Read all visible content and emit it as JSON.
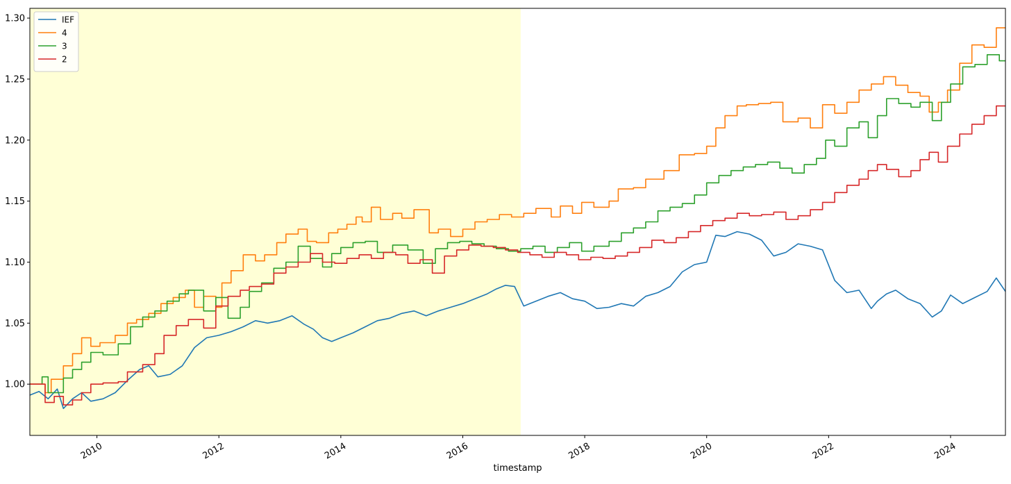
{
  "chart_data": {
    "type": "line",
    "xlabel": "timestamp",
    "ylabel": "",
    "title": "",
    "xlim": [
      2008.9,
      2024.9
    ],
    "ylim": [
      0.958,
      1.308
    ],
    "x_ticks": [
      2010,
      2012,
      2014,
      2016,
      2018,
      2020,
      2022,
      2024
    ],
    "x_tick_labels": [
      "2010",
      "2012",
      "2014",
      "2016",
      "2018",
      "2020",
      "2022",
      "2024"
    ],
    "y_ticks": [
      1.0,
      1.05,
      1.1,
      1.15,
      1.2,
      1.25,
      1.3
    ],
    "y_tick_labels": [
      "1.00",
      "1.05",
      "1.10",
      "1.15",
      "1.20",
      "1.25",
      "1.30"
    ],
    "grid": false,
    "legend_position": "top-left",
    "shaded_region": {
      "x_start": 2008.9,
      "x_end": 2016.95,
      "color": "#ffffd6"
    },
    "series": [
      {
        "name": "IEF",
        "color": "#1f77b4",
        "step": false,
        "x": [
          2008.9,
          2009.05,
          2009.2,
          2009.35,
          2009.45,
          2009.6,
          2009.75,
          2009.9,
          2010.1,
          2010.3,
          2010.5,
          2010.7,
          2010.85,
          2011.0,
          2011.2,
          2011.4,
          2011.6,
          2011.8,
          2012.0,
          2012.2,
          2012.4,
          2012.6,
          2012.8,
          2013.0,
          2013.2,
          2013.4,
          2013.55,
          2013.7,
          2013.85,
          2014.0,
          2014.2,
          2014.4,
          2014.6,
          2014.8,
          2015.0,
          2015.2,
          2015.4,
          2015.6,
          2015.8,
          2016.0,
          2016.2,
          2016.4,
          2016.55,
          2016.7,
          2016.85,
          2017.0,
          2017.2,
          2017.4,
          2017.6,
          2017.8,
          2018.0,
          2018.2,
          2018.4,
          2018.6,
          2018.8,
          2019.0,
          2019.2,
          2019.4,
          2019.6,
          2019.8,
          2020.0,
          2020.15,
          2020.3,
          2020.5,
          2020.7,
          2020.9,
          2021.1,
          2021.3,
          2021.5,
          2021.7,
          2021.9,
          2022.1,
          2022.3,
          2022.5,
          2022.7,
          2022.8,
          2022.95,
          2023.1,
          2023.3,
          2023.5,
          2023.7,
          2023.85,
          2024.0,
          2024.2,
          2024.4,
          2024.6,
          2024.75,
          2024.9
        ],
        "values": [
          0.991,
          0.994,
          0.988,
          0.996,
          0.98,
          0.988,
          0.993,
          0.986,
          0.988,
          0.993,
          1.003,
          1.012,
          1.015,
          1.006,
          1.008,
          1.015,
          1.03,
          1.038,
          1.04,
          1.043,
          1.047,
          1.052,
          1.05,
          1.052,
          1.056,
          1.049,
          1.045,
          1.038,
          1.035,
          1.038,
          1.042,
          1.047,
          1.052,
          1.054,
          1.058,
          1.06,
          1.056,
          1.06,
          1.063,
          1.066,
          1.07,
          1.074,
          1.078,
          1.081,
          1.08,
          1.064,
          1.068,
          1.072,
          1.075,
          1.07,
          1.068,
          1.062,
          1.063,
          1.066,
          1.064,
          1.072,
          1.075,
          1.08,
          1.092,
          1.098,
          1.1,
          1.122,
          1.121,
          1.125,
          1.123,
          1.118,
          1.105,
          1.108,
          1.115,
          1.113,
          1.11,
          1.085,
          1.075,
          1.077,
          1.062,
          1.068,
          1.074,
          1.077,
          1.07,
          1.066,
          1.055,
          1.06,
          1.073,
          1.066,
          1.071,
          1.076,
          1.087,
          1.076
        ]
      },
      {
        "name": "4",
        "color": "#ff7f0e",
        "step": true,
        "x": [
          2008.9,
          2009.15,
          2009.25,
          2009.45,
          2009.6,
          2009.75,
          2009.9,
          2010.05,
          2010.3,
          2010.5,
          2010.65,
          2010.85,
          2011.05,
          2011.25,
          2011.45,
          2011.6,
          2011.75,
          2011.95,
          2012.05,
          2012.2,
          2012.4,
          2012.6,
          2012.75,
          2012.95,
          2013.1,
          2013.3,
          2013.45,
          2013.6,
          2013.8,
          2013.95,
          2014.1,
          2014.25,
          2014.35,
          2014.5,
          2014.65,
          2014.85,
          2015.0,
          2015.2,
          2015.45,
          2015.6,
          2015.8,
          2016.0,
          2016.2,
          2016.4,
          2016.6,
          2016.8,
          2017.0,
          2017.2,
          2017.45,
          2017.6,
          2017.8,
          2017.95,
          2018.15,
          2018.4,
          2018.55,
          2018.8,
          2019.0,
          2019.3,
          2019.55,
          2019.8,
          2020.0,
          2020.15,
          2020.3,
          2020.5,
          2020.65,
          2020.85,
          2021.05,
          2021.25,
          2021.5,
          2021.7,
          2021.9,
          2022.1,
          2022.3,
          2022.5,
          2022.7,
          2022.9,
          2023.1,
          2023.3,
          2023.5,
          2023.65,
          2023.8,
          2023.95,
          2024.15,
          2024.35,
          2024.55,
          2024.75
        ],
        "values": [
          1.0,
          0.993,
          1.004,
          1.015,
          1.025,
          1.038,
          1.031,
          1.034,
          1.04,
          1.05,
          1.053,
          1.058,
          1.066,
          1.071,
          1.077,
          1.063,
          1.072,
          1.063,
          1.083,
          1.093,
          1.106,
          1.101,
          1.106,
          1.116,
          1.123,
          1.127,
          1.117,
          1.116,
          1.124,
          1.127,
          1.131,
          1.137,
          1.133,
          1.145,
          1.135,
          1.14,
          1.136,
          1.143,
          1.124,
          1.127,
          1.121,
          1.127,
          1.133,
          1.135,
          1.139,
          1.137,
          1.14,
          1.144,
          1.137,
          1.146,
          1.14,
          1.149,
          1.145,
          1.15,
          1.16,
          1.161,
          1.168,
          1.175,
          1.188,
          1.189,
          1.195,
          1.21,
          1.22,
          1.228,
          1.229,
          1.23,
          1.231,
          1.215,
          1.218,
          1.21,
          1.229,
          1.222,
          1.231,
          1.241,
          1.246,
          1.252,
          1.245,
          1.239,
          1.236,
          1.223,
          1.231,
          1.241,
          1.263,
          1.278,
          1.276,
          1.292
        ]
      },
      {
        "name": "3",
        "color": "#2ca02c",
        "step": true,
        "x": [
          2008.9,
          2009.1,
          2009.2,
          2009.45,
          2009.6,
          2009.75,
          2009.9,
          2010.1,
          2010.35,
          2010.55,
          2010.75,
          2010.95,
          2011.15,
          2011.35,
          2011.5,
          2011.75,
          2011.95,
          2012.15,
          2012.35,
          2012.5,
          2012.7,
          2012.9,
          2013.1,
          2013.3,
          2013.5,
          2013.7,
          2013.85,
          2014.0,
          2014.2,
          2014.4,
          2014.6,
          2014.85,
          2015.1,
          2015.35,
          2015.55,
          2015.75,
          2015.95,
          2016.15,
          2016.35,
          2016.55,
          2016.75,
          2016.95,
          2017.15,
          2017.35,
          2017.55,
          2017.75,
          2017.95,
          2018.15,
          2018.4,
          2018.6,
          2018.8,
          2019.0,
          2019.2,
          2019.4,
          2019.6,
          2019.8,
          2020.0,
          2020.2,
          2020.4,
          2020.6,
          2020.8,
          2021.0,
          2021.2,
          2021.4,
          2021.6,
          2021.8,
          2021.95,
          2022.1,
          2022.3,
          2022.5,
          2022.65,
          2022.8,
          2022.95,
          2023.15,
          2023.35,
          2023.5,
          2023.7,
          2023.85,
          2024.0,
          2024.2,
          2024.4,
          2024.6,
          2024.8
        ],
        "values": [
          1.0,
          1.006,
          0.993,
          1.005,
          1.012,
          1.018,
          1.026,
          1.024,
          1.033,
          1.047,
          1.055,
          1.06,
          1.068,
          1.074,
          1.077,
          1.06,
          1.071,
          1.054,
          1.063,
          1.076,
          1.083,
          1.095,
          1.1,
          1.113,
          1.103,
          1.096,
          1.107,
          1.112,
          1.116,
          1.117,
          1.108,
          1.114,
          1.11,
          1.099,
          1.111,
          1.116,
          1.117,
          1.115,
          1.113,
          1.111,
          1.109,
          1.111,
          1.113,
          1.108,
          1.112,
          1.116,
          1.109,
          1.113,
          1.117,
          1.124,
          1.128,
          1.133,
          1.142,
          1.145,
          1.148,
          1.155,
          1.165,
          1.171,
          1.175,
          1.178,
          1.18,
          1.182,
          1.177,
          1.173,
          1.18,
          1.185,
          1.2,
          1.195,
          1.21,
          1.215,
          1.202,
          1.22,
          1.234,
          1.23,
          1.227,
          1.231,
          1.216,
          1.231,
          1.246,
          1.26,
          1.262,
          1.27,
          1.265
        ]
      },
      {
        "name": "2",
        "color": "#d62728",
        "step": true,
        "x": [
          2008.9,
          2009.15,
          2009.3,
          2009.45,
          2009.6,
          2009.75,
          2009.9,
          2010.1,
          2010.35,
          2010.5,
          2010.75,
          2010.95,
          2011.1,
          2011.3,
          2011.5,
          2011.75,
          2011.95,
          2012.15,
          2012.35,
          2012.5,
          2012.7,
          2012.9,
          2013.1,
          2013.3,
          2013.5,
          2013.7,
          2013.9,
          2014.1,
          2014.3,
          2014.5,
          2014.7,
          2014.9,
          2015.1,
          2015.3,
          2015.5,
          2015.7,
          2015.9,
          2016.1,
          2016.3,
          2016.5,
          2016.7,
          2016.9,
          2017.1,
          2017.3,
          2017.5,
          2017.7,
          2017.9,
          2018.1,
          2018.3,
          2018.5,
          2018.7,
          2018.9,
          2019.1,
          2019.3,
          2019.5,
          2019.7,
          2019.9,
          2020.1,
          2020.3,
          2020.5,
          2020.7,
          2020.9,
          2021.1,
          2021.3,
          2021.5,
          2021.7,
          2021.9,
          2022.1,
          2022.3,
          2022.5,
          2022.65,
          2022.8,
          2022.95,
          2023.15,
          2023.35,
          2023.5,
          2023.65,
          2023.8,
          2023.95,
          2024.15,
          2024.35,
          2024.55,
          2024.75
        ],
        "values": [
          1.0,
          0.985,
          0.99,
          0.983,
          0.987,
          0.993,
          1.0,
          1.001,
          1.002,
          1.01,
          1.016,
          1.025,
          1.04,
          1.048,
          1.053,
          1.046,
          1.064,
          1.072,
          1.077,
          1.08,
          1.082,
          1.091,
          1.096,
          1.1,
          1.107,
          1.1,
          1.099,
          1.103,
          1.106,
          1.103,
          1.108,
          1.106,
          1.099,
          1.102,
          1.091,
          1.105,
          1.11,
          1.114,
          1.113,
          1.112,
          1.11,
          1.108,
          1.106,
          1.104,
          1.108,
          1.106,
          1.102,
          1.104,
          1.103,
          1.105,
          1.108,
          1.112,
          1.118,
          1.116,
          1.12,
          1.125,
          1.13,
          1.134,
          1.136,
          1.14,
          1.138,
          1.139,
          1.141,
          1.135,
          1.138,
          1.143,
          1.149,
          1.157,
          1.163,
          1.168,
          1.175,
          1.18,
          1.176,
          1.17,
          1.175,
          1.184,
          1.19,
          1.182,
          1.195,
          1.205,
          1.213,
          1.22,
          1.228
        ]
      }
    ]
  }
}
